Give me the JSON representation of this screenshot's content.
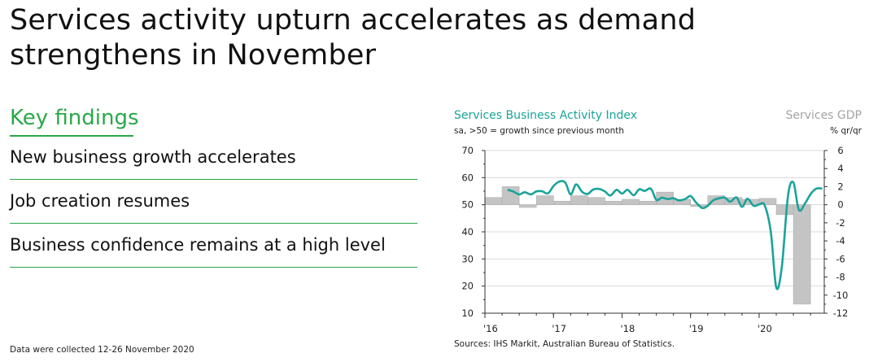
{
  "headline": "Services activity upturn accelerates as demand strengthens in November",
  "key_findings": {
    "title": "Key findings",
    "items": [
      "New business growth accelerates",
      "Job creation resumes",
      "Business confidence remains at a high level"
    ]
  },
  "footnote": "Data were collected 12-26 November 2020",
  "colors": {
    "accent": "#2ba84a",
    "line": "#1aa39a",
    "bars": "#bdbdbd"
  },
  "chart_data": {
    "type": "line+bar",
    "title": "Services Business Activity Index",
    "subtitle": "sa, >50 = growth since previous month",
    "right_title": "Services GDP",
    "right_subtitle": "% qr/qr",
    "sources": "Sources: IHS Markit, Australian Bureau of Statistics.",
    "left_axis": {
      "min": 10,
      "max": 70,
      "ticks": [
        "70",
        "60",
        "50",
        "40",
        "30",
        "20",
        "10"
      ],
      "tick_values": [
        70,
        60,
        50,
        40,
        30,
        20,
        10
      ]
    },
    "right_axis": {
      "min": -12,
      "max": 6,
      "ticks": [
        "6",
        "4",
        "2",
        "0",
        "-2",
        "-4",
        "-6",
        "-8",
        "-10",
        "-12"
      ],
      "tick_values": [
        6,
        4,
        2,
        0,
        -2,
        -4,
        -6,
        -8,
        -10,
        -12
      ]
    },
    "x_axis": {
      "min": 2016.0,
      "max": 2020.95,
      "ticks": [
        "'16",
        "'17",
        "'18",
        "'19",
        "'20"
      ],
      "tick_values": [
        2016,
        2017,
        2018,
        2019,
        2020
      ]
    },
    "gdp_bars": {
      "name": "Services GDP (% q/q, rhs)",
      "x_start": [
        2016.0,
        2016.25,
        2016.5,
        2016.75,
        2017.0,
        2017.25,
        2017.5,
        2017.75,
        2018.0,
        2018.25,
        2018.5,
        2018.75,
        2019.0,
        2019.25,
        2019.5,
        2019.75,
        2020.0,
        2020.25,
        2020.5
      ],
      "values": [
        0.8,
        2.0,
        -0.3,
        1.0,
        0.4,
        1.0,
        0.8,
        0.4,
        0.6,
        0.4,
        1.4,
        0.6,
        -0.2,
        1.0,
        0.8,
        0.6,
        0.7,
        -1.1,
        -11.0
      ]
    },
    "pmi_series": {
      "name": "Services Business Activity Index",
      "x": [
        2016.33,
        2016.42,
        2016.5,
        2016.58,
        2016.67,
        2016.75,
        2016.83,
        2016.92,
        2017.0,
        2017.08,
        2017.17,
        2017.25,
        2017.33,
        2017.42,
        2017.5,
        2017.58,
        2017.67,
        2017.75,
        2017.83,
        2017.92,
        2018.0,
        2018.08,
        2018.17,
        2018.25,
        2018.33,
        2018.42,
        2018.5,
        2018.58,
        2018.67,
        2018.75,
        2018.83,
        2018.92,
        2019.0,
        2019.08,
        2019.17,
        2019.25,
        2019.33,
        2019.42,
        2019.5,
        2019.58,
        2019.67,
        2019.75,
        2019.83,
        2019.92,
        2020.0,
        2020.08,
        2020.17,
        2020.25,
        2020.33,
        2020.42,
        2020.5,
        2020.58,
        2020.67,
        2020.75,
        2020.83,
        2020.92
      ],
      "values": [
        55.5,
        54.8,
        53.8,
        54.6,
        53.8,
        54.9,
        55.0,
        54.2,
        56.9,
        58.5,
        58.2,
        53.8,
        57.5,
        54.7,
        54.0,
        55.6,
        55.8,
        54.9,
        53.4,
        55.5,
        54.1,
        55.5,
        53.5,
        55.7,
        55.1,
        55.9,
        51.8,
        52.6,
        52.1,
        52.4,
        51.6,
        52.1,
        53.2,
        50.8,
        48.8,
        49.6,
        51.6,
        52.4,
        52.6,
        51.1,
        52.7,
        49.2,
        52.2,
        49.6,
        50.1,
        49.8,
        40.0,
        19.5,
        26.9,
        53.1,
        58.2,
        48.1,
        50.5,
        53.9,
        55.9,
        56.0
      ]
    }
  }
}
